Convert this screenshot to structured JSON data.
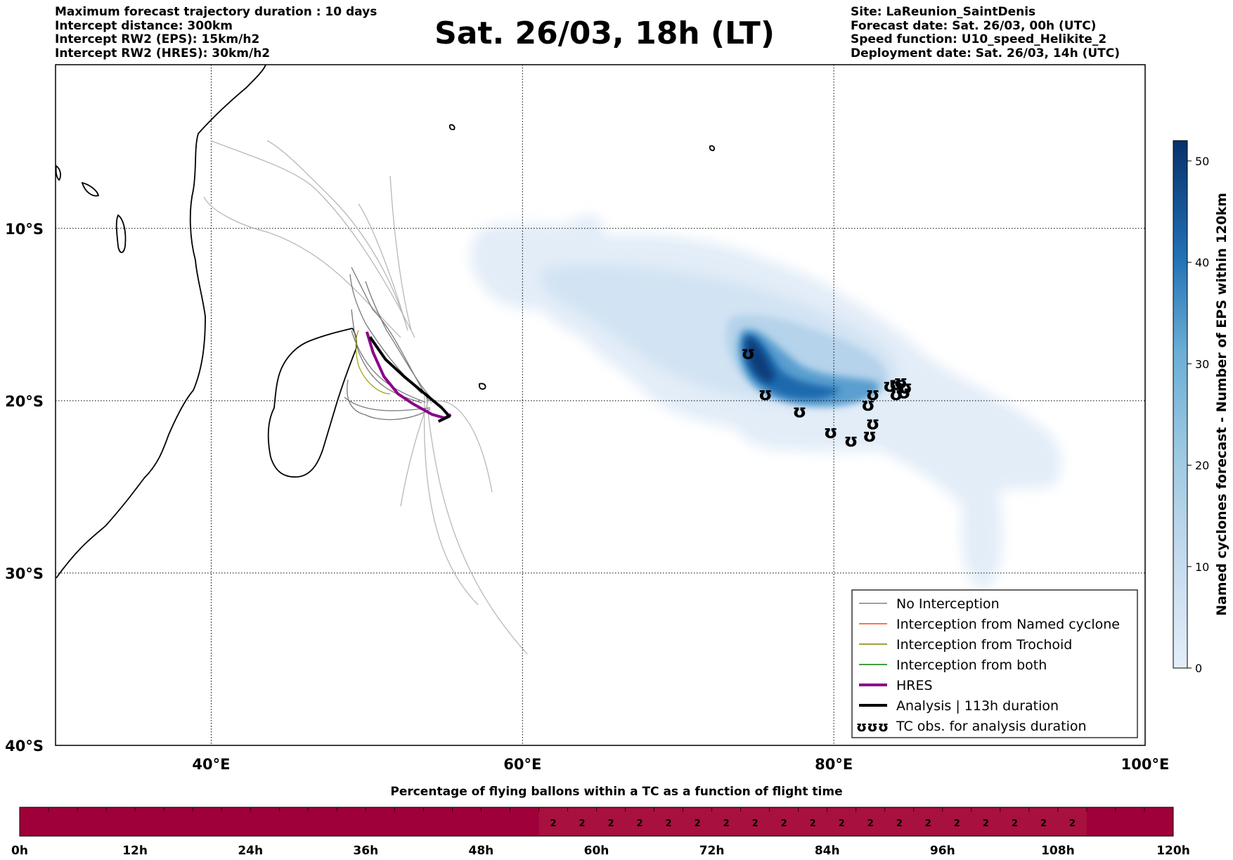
{
  "header": {
    "left_lines": [
      "Maximum forecast trajectory duration : 10 days",
      "Intercept distance: 300km",
      "Intercept RW2 (EPS):  15km/h2",
      "Intercept RW2 (HRES): 30km/h2"
    ],
    "title": "Sat. 26/03, 18h (LT)",
    "right_lines": [
      "Site: LaReunion_SaintDenis",
      "Forecast date: Sat. 26/03, 00h (UTC)",
      "Speed function: U10_speed_Helikite_2",
      "Deployment date: Sat. 26/03, 14h (UTC)"
    ]
  },
  "map": {
    "lon_range": [
      30,
      100
    ],
    "lat_range": [
      -40,
      -0.5
    ],
    "lon_ticks": [
      {
        "value": 40,
        "label": "40°E"
      },
      {
        "value": 60,
        "label": "60°E"
      },
      {
        "value": 80,
        "label": "80°E"
      },
      {
        "value": 100,
        "label": "100°E"
      }
    ],
    "lat_ticks": [
      {
        "value": -10,
        "label": "10°S"
      },
      {
        "value": -20,
        "label": "20°S"
      },
      {
        "value": -30,
        "label": "30°S"
      },
      {
        "value": -40,
        "label": "40°S"
      }
    ],
    "site": {
      "name": "LaReunion_SaintDenis",
      "lon": 55.45,
      "lat": -20.9
    },
    "tc_obs_positions": [
      {
        "lon": 74.5,
        "lat": -17.2
      },
      {
        "lon": 75.6,
        "lat": -19.6
      },
      {
        "lon": 77.8,
        "lat": -20.6
      },
      {
        "lon": 79.8,
        "lat": -21.8
      },
      {
        "lon": 81.1,
        "lat": -22.3
      },
      {
        "lon": 82.3,
        "lat": -22.0
      },
      {
        "lon": 82.5,
        "lat": -21.3
      },
      {
        "lon": 82.2,
        "lat": -20.2
      },
      {
        "lon": 82.5,
        "lat": -19.6
      },
      {
        "lon": 83.6,
        "lat": -19.1
      },
      {
        "lon": 84.0,
        "lat": -19.0
      },
      {
        "lon": 84.3,
        "lat": -18.9
      },
      {
        "lon": 84.6,
        "lat": -19.2
      },
      {
        "lon": 84.0,
        "lat": -19.6
      },
      {
        "lon": 84.5,
        "lat": -19.5
      }
    ],
    "hres_track": [
      [
        50.0,
        -16.0
      ],
      [
        50.4,
        -17.2
      ],
      [
        51.1,
        -18.6
      ],
      [
        52.0,
        -19.6
      ],
      [
        53.0,
        -20.2
      ],
      [
        54.2,
        -20.8
      ],
      [
        55.0,
        -21.0
      ],
      [
        55.4,
        -20.8
      ]
    ],
    "analysis_track": [
      [
        50.2,
        -16.3
      ],
      [
        51.2,
        -17.6
      ],
      [
        52.4,
        -18.6
      ],
      [
        53.6,
        -19.5
      ],
      [
        54.8,
        -20.4
      ],
      [
        55.3,
        -20.9
      ],
      [
        54.6,
        -21.2
      ]
    ],
    "legend": [
      {
        "label": "No Interception",
        "color": "#808080",
        "width": 1.5
      },
      {
        "label": "Interception from Named cyclone",
        "color": "#ff4500",
        "width": 1.5
      },
      {
        "label": "Interception from Trochoid",
        "color": "#808000",
        "width": 1.5
      },
      {
        "label": "Interception from both",
        "color": "#008000",
        "width": 1.5
      },
      {
        "label": "HRES",
        "color": "#8b008b",
        "width": 4
      },
      {
        "label": "Analysis | 113h duration",
        "color": "#000000",
        "width": 4
      },
      {
        "label": "TC obs. for analysis duration",
        "color": "#000000",
        "symbol": "ʊʊʊ"
      }
    ]
  },
  "colorbar": {
    "label": "Named cyclones forecast - Number of EPS within 120km",
    "min": 0,
    "max": 52,
    "ticks": [
      0,
      10,
      20,
      30,
      40,
      50
    ],
    "color_low": "#e3eef9",
    "color_high": "#08306b"
  },
  "timeline": {
    "title": "Percentage of flying ballons within a TC as a function of flight time",
    "ticks": [
      "0h",
      "12h",
      "24h",
      "36h",
      "48h",
      "60h",
      "72h",
      "84h",
      "96h",
      "108h",
      "120h"
    ],
    "hours_per_cell": 3,
    "percent_values": [
      0,
      0,
      0,
      0,
      0,
      0,
      0,
      0,
      0,
      0,
      0,
      0,
      0,
      0,
      0,
      0,
      0,
      0,
      2,
      2,
      2,
      2,
      2,
      2,
      2,
      2,
      2,
      2,
      2,
      2,
      2,
      2,
      2,
      2,
      2,
      2,
      2,
      0,
      0,
      0
    ],
    "color_base": "#9f0039",
    "color_value": "#a8103f"
  }
}
